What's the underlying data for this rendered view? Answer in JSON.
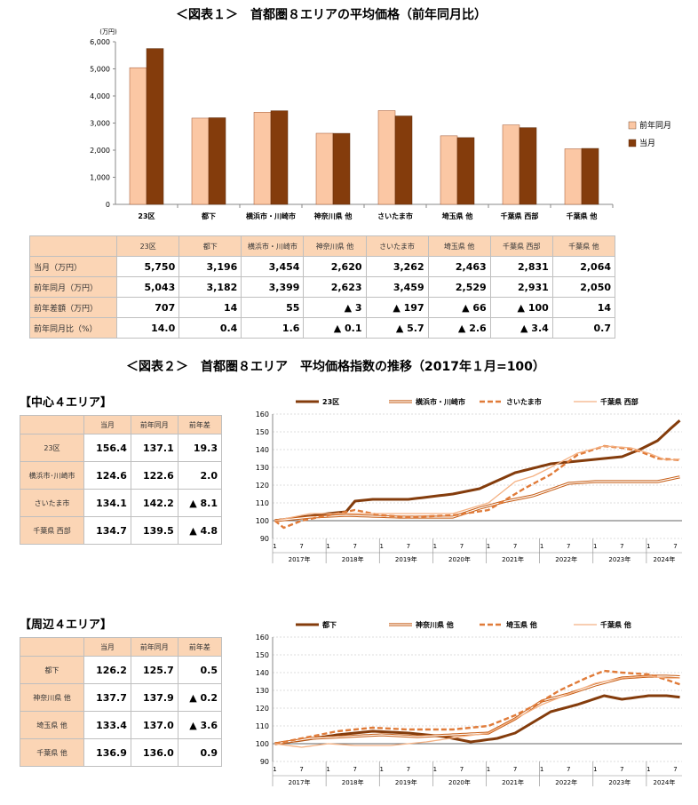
{
  "fig1": {
    "title": "＜図表１＞　首都圏８エリアの平均価格（前年同月比）",
    "unit": "(万円)",
    "yticks": [
      "0",
      "1,000",
      "2,000",
      "3,000",
      "4,000",
      "5,000",
      "6,000"
    ],
    "legend": [
      "前年同月",
      "当月"
    ]
  },
  "fig2": {
    "title": "＜図表２＞　首都圏８エリア　平均価格指数の推移（2017年１月=100）"
  },
  "sections": {
    "center": "【中心４エリア】",
    "suburb": "【周辺４エリア】"
  },
  "table1": {
    "header": [
      "23区",
      "都下",
      "横浜市・川崎市",
      "神奈川県 他",
      "さいたま市",
      "埼玉県 他",
      "千葉県 西部",
      "千葉県 他"
    ],
    "rows": [
      {
        "label": "当月（万円）",
        "values": [
          "5,750",
          "3,196",
          "3,454",
          "2,620",
          "3,262",
          "2,463",
          "2,831",
          "2,064"
        ]
      },
      {
        "label": "前年同月（万円）",
        "values": [
          "5,043",
          "3,182",
          "3,399",
          "2,623",
          "3,459",
          "2,529",
          "2,931",
          "2,050"
        ]
      },
      {
        "label": "前年差額（万円）",
        "values": [
          "707",
          "14",
          "55",
          "▲ 3",
          "▲ 197",
          "▲ 66",
          "▲ 100",
          "14"
        ]
      },
      {
        "label": "前年同月比（%）",
        "values": [
          "14.0",
          "0.4",
          "1.6",
          "▲ 0.1",
          "▲ 5.7",
          "▲ 2.6",
          "▲ 3.4",
          "0.7"
        ]
      }
    ]
  },
  "table2": {
    "header": [
      "当月",
      "前年同月",
      "前年差"
    ],
    "rows": [
      {
        "label": "23区",
        "values": [
          "156.4",
          "137.1",
          "19.3"
        ]
      },
      {
        "label": "横浜市･川崎市",
        "values": [
          "124.6",
          "122.6",
          "2.0"
        ]
      },
      {
        "label": "さいたま市",
        "values": [
          "134.1",
          "142.2",
          "▲ 8.1"
        ]
      },
      {
        "label": "千葉県 西部",
        "values": [
          "134.7",
          "139.5",
          "▲ 4.8"
        ]
      }
    ]
  },
  "table3": {
    "header": [
      "当月",
      "前年同月",
      "前年差"
    ],
    "rows": [
      {
        "label": "都下",
        "values": [
          "126.2",
          "125.7",
          "0.5"
        ]
      },
      {
        "label": "神奈川県 他",
        "values": [
          "137.7",
          "137.9",
          "▲ 0.2"
        ]
      },
      {
        "label": "埼玉県 他",
        "values": [
          "133.4",
          "137.0",
          "▲ 3.6"
        ]
      },
      {
        "label": "千葉県 他",
        "values": [
          "136.9",
          "136.0",
          "0.9"
        ]
      }
    ]
  },
  "chart_data": [
    {
      "type": "bar",
      "title": "＜図表１＞　首都圏８エリアの平均価格（前年同月比）",
      "ylabel": "(万円)",
      "ylim": [
        0,
        6000
      ],
      "categories": [
        "23区",
        "都下",
        "横浜市・川崎市",
        "神奈川県 他",
        "さいたま市",
        "埼玉県 他",
        "千葉県 西部",
        "千葉県 他"
      ],
      "series": [
        {
          "name": "前年同月",
          "color": "#fbc7a4",
          "values": [
            5043,
            3182,
            3399,
            2623,
            3459,
            2529,
            2931,
            2050
          ]
        },
        {
          "name": "当月",
          "color": "#843c0c",
          "values": [
            5750,
            3196,
            3454,
            2620,
            3262,
            2463,
            2831,
            2064
          ]
        }
      ],
      "legend": "right"
    },
    {
      "type": "line",
      "ylim": [
        90,
        160
      ],
      "yticks": [
        "160",
        "150",
        "140",
        "130",
        "120",
        "110",
        "100",
        "90"
      ],
      "month_ticks": [
        "1",
        "7"
      ],
      "years": [
        "2017年",
        "2018年",
        "2019年",
        "2020年",
        "2021年",
        "2022年",
        "2023年",
        "2024年"
      ],
      "legend": "top",
      "series": [
        {
          "name": "23区",
          "style": "thick",
          "color": "#843c0c",
          "keys": [
            [
              0,
              100
            ],
            [
              6,
              102
            ],
            [
              12,
              104
            ],
            [
              16,
              105
            ],
            [
              18,
              111
            ],
            [
              22,
              112
            ],
            [
              30,
              112
            ],
            [
              40,
              115
            ],
            [
              46,
              118
            ],
            [
              54,
              127
            ],
            [
              62,
              132
            ],
            [
              70,
              134
            ],
            [
              78,
              136
            ],
            [
              82,
              140
            ],
            [
              86,
              145
            ],
            [
              89,
              152
            ],
            [
              91,
              156.4
            ]
          ]
        },
        {
          "name": "横浜市・川崎市",
          "style": "double",
          "color": "#c55a11",
          "keys": [
            [
              0,
              100
            ],
            [
              8,
              102
            ],
            [
              16,
              103
            ],
            [
              28,
              102
            ],
            [
              40,
              102
            ],
            [
              46,
              107
            ],
            [
              52,
              111
            ],
            [
              58,
              114
            ],
            [
              66,
              121
            ],
            [
              72,
              122
            ],
            [
              80,
              122
            ],
            [
              86,
              122
            ],
            [
              91,
              124.6
            ]
          ]
        },
        {
          "name": "さいたま市",
          "style": "dash",
          "color": "#e07b39",
          "keys": [
            [
              0,
              100
            ],
            [
              2,
              96
            ],
            [
              6,
              100
            ],
            [
              12,
              103
            ],
            [
              18,
              106
            ],
            [
              24,
              103
            ],
            [
              30,
              102
            ],
            [
              40,
              103
            ],
            [
              48,
              106
            ],
            [
              56,
              118
            ],
            [
              62,
              126
            ],
            [
              68,
              137
            ],
            [
              74,
              142
            ],
            [
              78,
              141
            ],
            [
              82,
              139
            ],
            [
              86,
              135
            ],
            [
              91,
              134.1
            ]
          ]
        },
        {
          "name": "千葉県 西部",
          "style": "thin",
          "color": "#f4b183",
          "keys": [
            [
              0,
              100
            ],
            [
              8,
              104
            ],
            [
              16,
              104
            ],
            [
              22,
              104
            ],
            [
              30,
              104
            ],
            [
              40,
              104
            ],
            [
              48,
              110
            ],
            [
              54,
              122
            ],
            [
              58,
              125
            ],
            [
              62,
              130
            ],
            [
              68,
              138
            ],
            [
              74,
              142
            ],
            [
              80,
              141
            ],
            [
              84,
              138
            ],
            [
              88,
              134
            ],
            [
              91,
              134.7
            ]
          ]
        }
      ]
    },
    {
      "type": "line",
      "ylim": [
        90,
        160
      ],
      "yticks": [
        "160",
        "150",
        "140",
        "130",
        "120",
        "110",
        "100",
        "90"
      ],
      "month_ticks": [
        "1",
        "7"
      ],
      "years": [
        "2017年",
        "2018年",
        "2019年",
        "2020年",
        "2021年",
        "2022年",
        "2023年",
        "2024年"
      ],
      "legend": "top",
      "series": [
        {
          "name": "都下",
          "style": "thick",
          "color": "#843c0c",
          "keys": [
            [
              0,
              100
            ],
            [
              6,
              102
            ],
            [
              14,
              105
            ],
            [
              22,
              107
            ],
            [
              30,
              106
            ],
            [
              38,
              104
            ],
            [
              44,
              101
            ],
            [
              50,
              103
            ],
            [
              54,
              106
            ],
            [
              58,
              112
            ],
            [
              62,
              118
            ],
            [
              68,
              122
            ],
            [
              74,
              127
            ],
            [
              78,
              125
            ],
            [
              84,
              127
            ],
            [
              88,
              127
            ],
            [
              91,
              126.2
            ]
          ]
        },
        {
          "name": "神奈川県 他",
          "style": "double",
          "color": "#c55a11",
          "keys": [
            [
              0,
              100
            ],
            [
              8,
              103
            ],
            [
              16,
              104
            ],
            [
              24,
              105
            ],
            [
              32,
              104
            ],
            [
              40,
              105
            ],
            [
              48,
              106
            ],
            [
              54,
              114
            ],
            [
              60,
              124
            ],
            [
              66,
              128
            ],
            [
              72,
              133
            ],
            [
              78,
              137
            ],
            [
              84,
              138
            ],
            [
              88,
              138
            ],
            [
              91,
              137.7
            ]
          ]
        },
        {
          "name": "埼玉県 他",
          "style": "dash",
          "color": "#e07b39",
          "keys": [
            [
              0,
              100
            ],
            [
              6,
              103
            ],
            [
              14,
              107
            ],
            [
              22,
              109
            ],
            [
              30,
              108
            ],
            [
              40,
              108
            ],
            [
              48,
              110
            ],
            [
              54,
              116
            ],
            [
              58,
              121
            ],
            [
              64,
              130
            ],
            [
              70,
              137
            ],
            [
              74,
              141
            ],
            [
              78,
              140
            ],
            [
              84,
              139
            ],
            [
              88,
              136
            ],
            [
              91,
              133.4
            ]
          ]
        },
        {
          "name": "千葉県 他",
          "style": "thin",
          "color": "#f4b183",
          "keys": [
            [
              0,
              100
            ],
            [
              6,
              98
            ],
            [
              12,
              100
            ],
            [
              18,
              99
            ],
            [
              26,
              99
            ],
            [
              34,
              101
            ],
            [
              42,
              104
            ],
            [
              48,
              106
            ],
            [
              54,
              114
            ],
            [
              60,
              122
            ],
            [
              66,
              128
            ],
            [
              72,
              134
            ],
            [
              78,
              137
            ],
            [
              84,
              138
            ],
            [
              88,
              137
            ],
            [
              91,
              136.9
            ]
          ]
        }
      ]
    }
  ]
}
